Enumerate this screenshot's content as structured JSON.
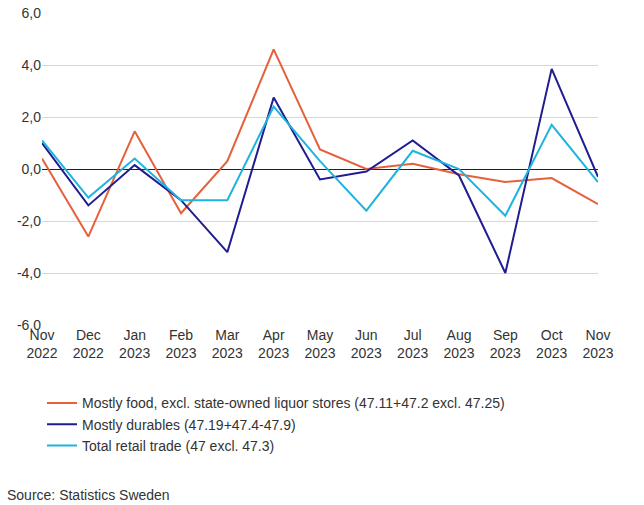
{
  "chart_data": {
    "type": "line",
    "categories": [
      "Nov 2022",
      "Dec 2022",
      "Jan 2023",
      "Feb 2023",
      "Mar 2023",
      "Apr 2023",
      "May 2023",
      "Jun 2023",
      "Jul 2023",
      "Aug 2023",
      "Sep 2023",
      "Oct 2023",
      "Nov 2023"
    ],
    "series": [
      {
        "name": "Mostly food, excl. state-owned liquor stores (47.11+47.2 excl. 47.25)",
        "color": "#e5613c",
        "values": [
          0.4,
          -2.6,
          1.45,
          -1.7,
          0.3,
          4.6,
          0.75,
          0.0,
          0.2,
          -0.2,
          -0.5,
          -0.35,
          -1.35
        ]
      },
      {
        "name": "Mostly durables (47.19+47.4-47.9)",
        "color": "#1f1d8f",
        "values": [
          1.0,
          -1.4,
          0.15,
          -1.2,
          -3.2,
          2.75,
          -0.4,
          -0.1,
          1.1,
          -0.25,
          -4.0,
          3.85,
          -0.3
        ]
      },
      {
        "name": "Total retail trade (47 excl. 47.3)",
        "color": "#1fb4e0",
        "values": [
          1.1,
          -1.1,
          0.4,
          -1.2,
          -1.2,
          2.4,
          0.3,
          -1.6,
          0.7,
          0.0,
          -1.8,
          1.7,
          -0.5
        ]
      }
    ],
    "ylim": [
      -6,
      6
    ],
    "yticks": [
      {
        "value": -6,
        "label": "-6,0"
      },
      {
        "value": -4,
        "label": "-4,0"
      },
      {
        "value": -2,
        "label": "-2,0"
      },
      {
        "value": 0,
        "label": "0,0"
      },
      {
        "value": 2,
        "label": "2,0"
      },
      {
        "value": 4,
        "label": "4,0"
      },
      {
        "value": 6,
        "label": "6,0"
      }
    ],
    "grid": true,
    "legend": "bottom",
    "source": "Source: Statistics Sweden"
  }
}
